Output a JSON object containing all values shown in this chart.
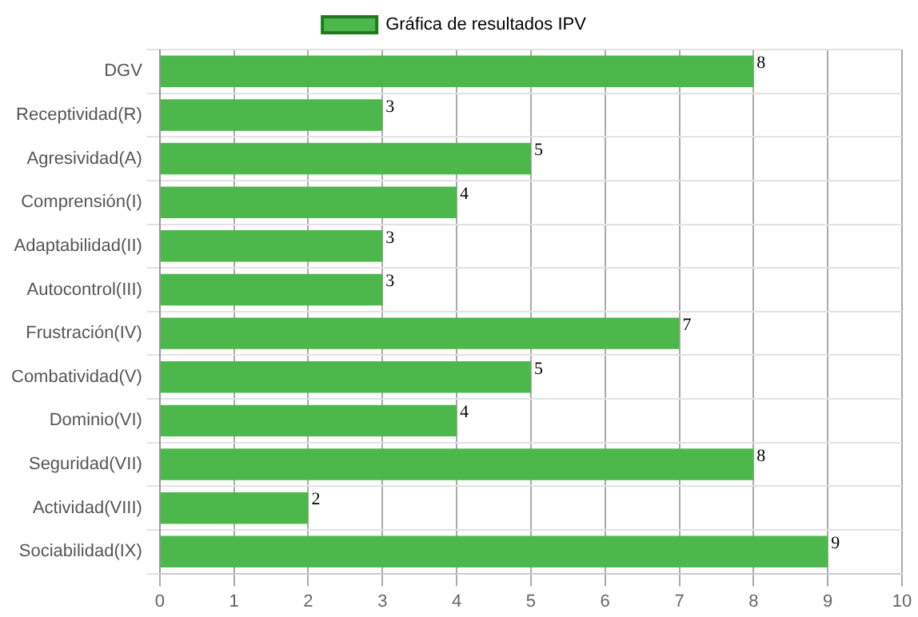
{
  "chart_data": {
    "type": "bar",
    "orientation": "horizontal",
    "categories": [
      "DGV",
      "Receptividad(R)",
      "Agresividad(A)",
      "Comprensión(I)",
      "Adaptabilidad(II)",
      "Autocontrol(III)",
      "Frustración(IV)",
      "Combatividad(V)",
      "Dominio(VI)",
      "Seguridad(VII)",
      "Actividad(VIII)",
      "Sociabilidad(IX)"
    ],
    "series": [
      {
        "name": "Gráfica de resultados IPV",
        "color": "#4cb84c",
        "values": [
          8,
          3,
          5,
          4,
          3,
          3,
          7,
          5,
          4,
          8,
          2,
          9
        ]
      }
    ],
    "xlim": [
      0,
      10
    ],
    "xticks": [
      0,
      1,
      2,
      3,
      4,
      5,
      6,
      7,
      8,
      9,
      10
    ],
    "grid": true,
    "legend": "top",
    "data_labels": true
  }
}
